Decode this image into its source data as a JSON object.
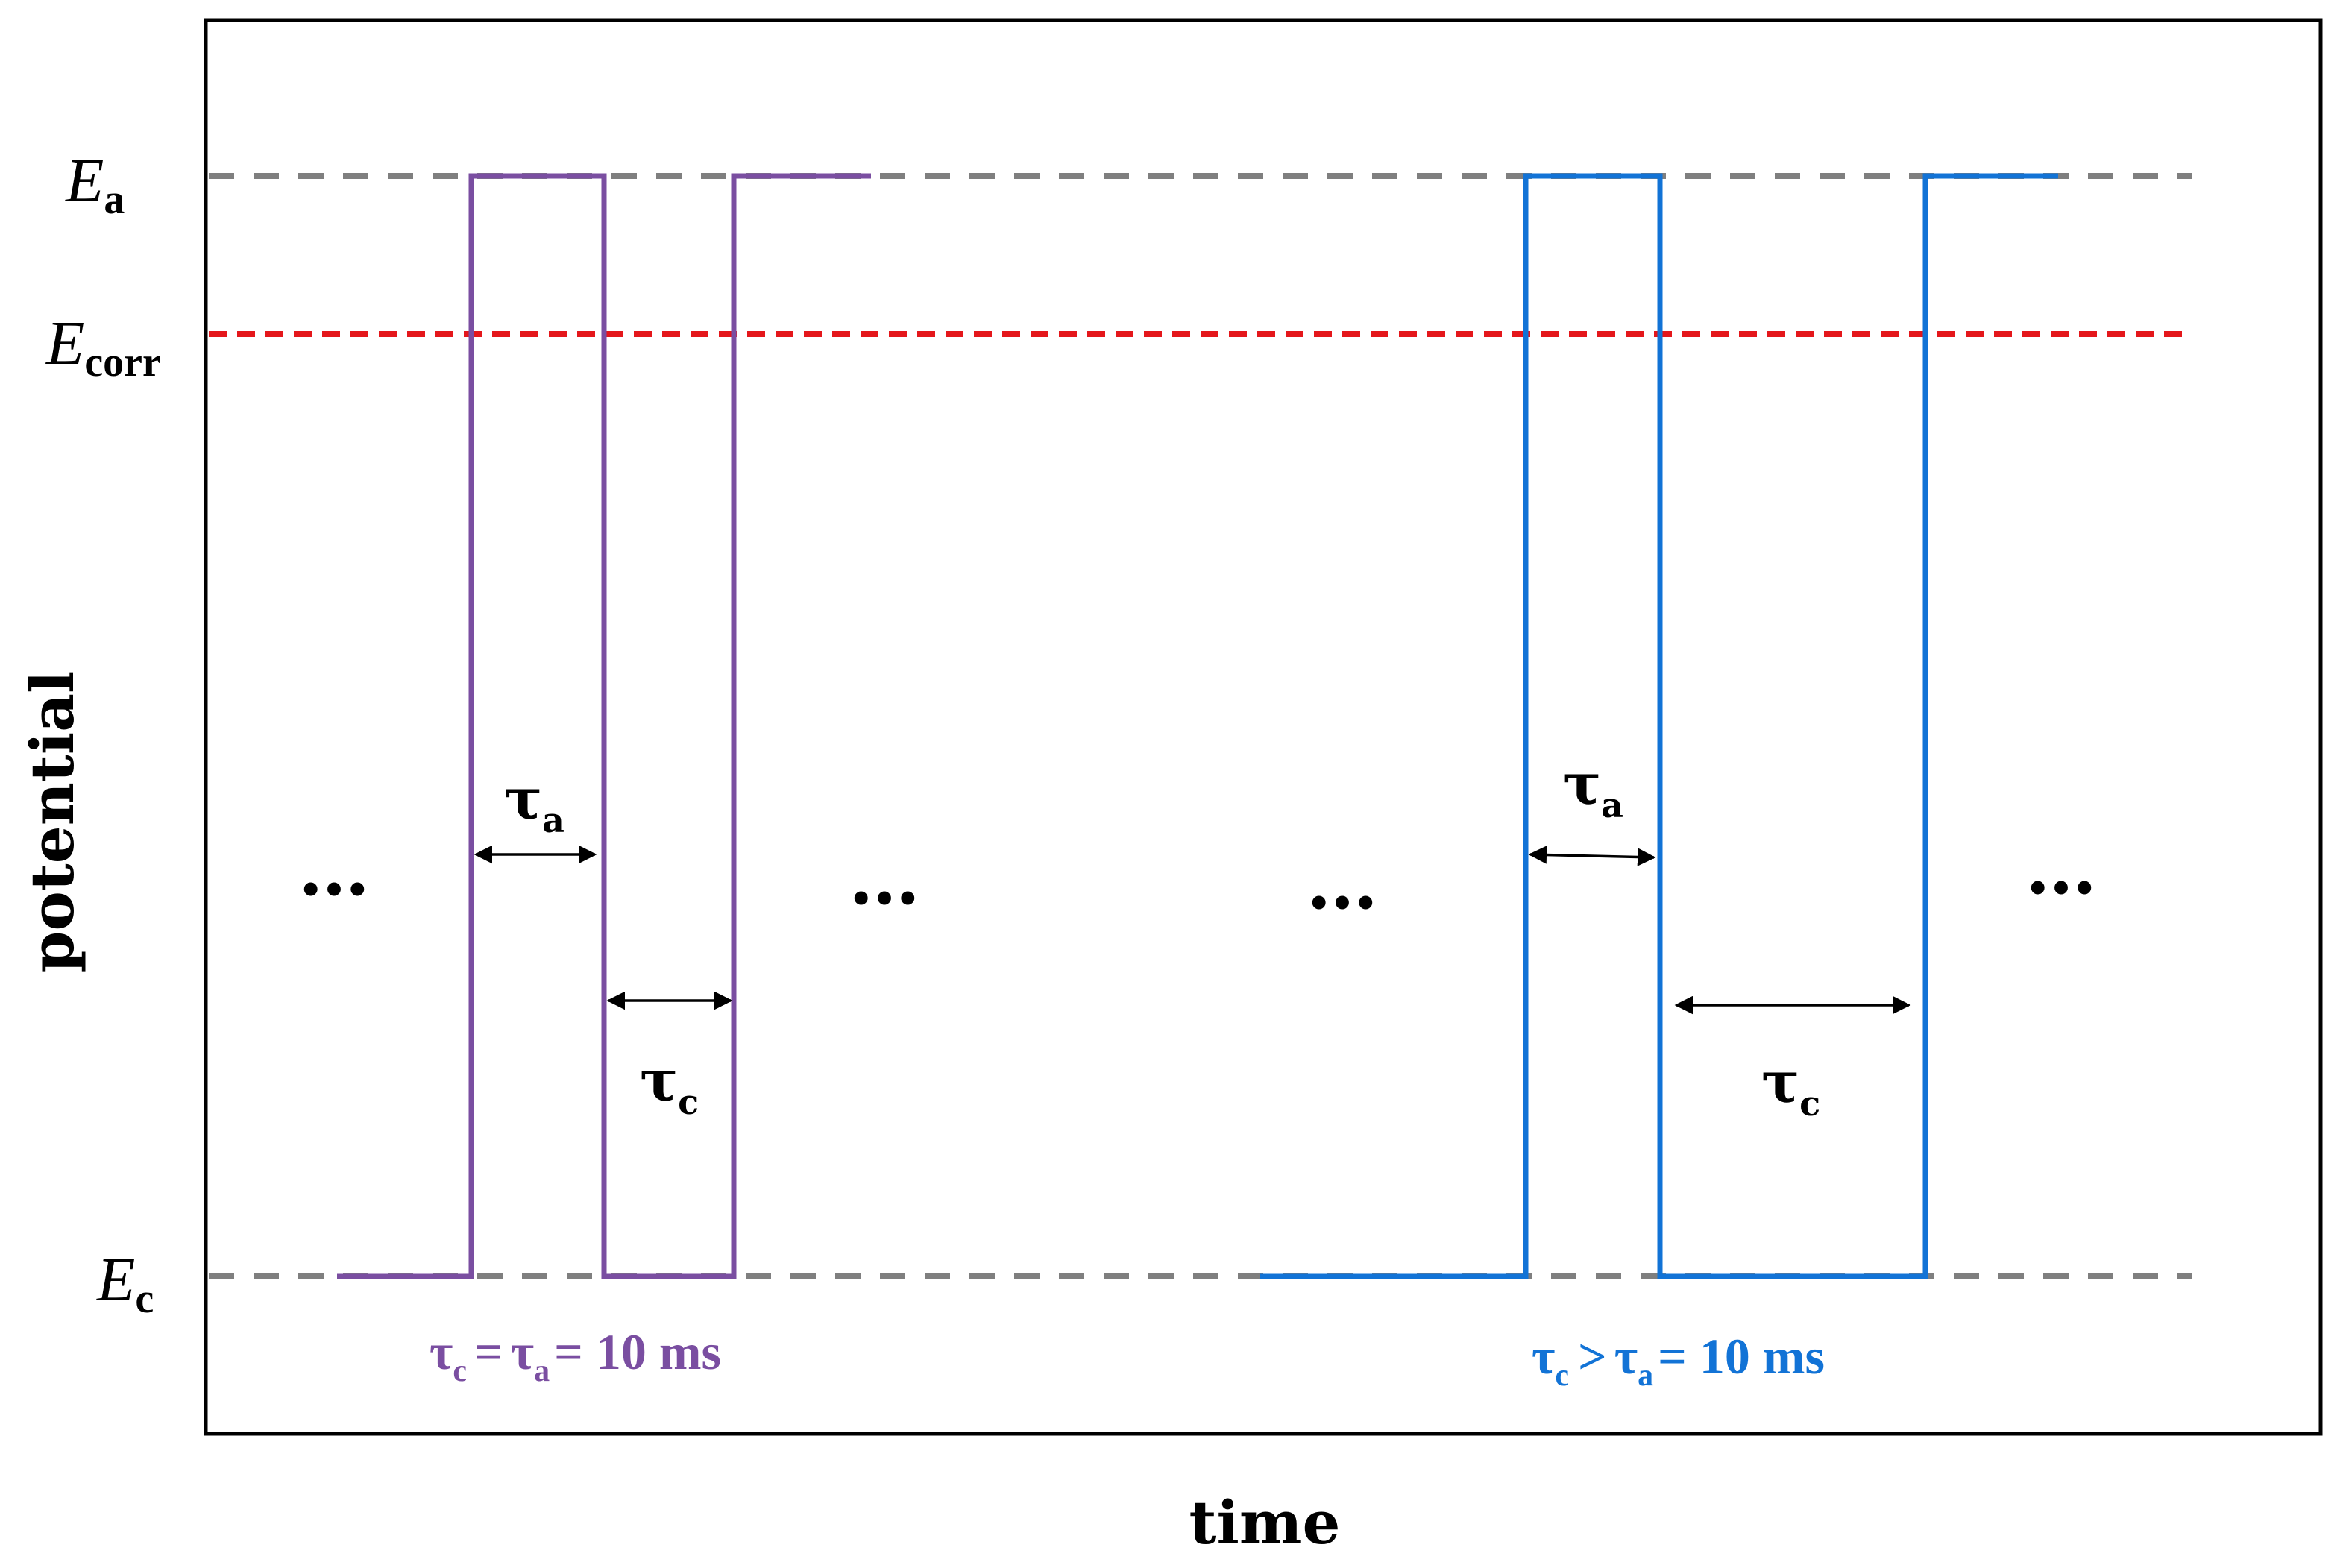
{
  "axes": {
    "y_label": "potential",
    "x_label": "time"
  },
  "levels": {
    "Ea": {
      "symbol": "E",
      "subscript": "a"
    },
    "Ecorr": {
      "symbol": "E",
      "subscript": "corr"
    },
    "Ec": {
      "symbol": "E",
      "subscript": "c"
    }
  },
  "symbols": {
    "tau": "τ",
    "sub_a": "a",
    "sub_c": "c",
    "ellipsis": "…"
  },
  "left_case": {
    "caption_eq1": "=",
    "caption_eq2": "= 10 ms",
    "color": "#7a4ea1"
  },
  "right_case": {
    "caption_op": ">",
    "caption_eq2": "= 10 ms",
    "color": "#1273d6"
  },
  "colors": {
    "reference_lines": "#7f7f7f",
    "corrosion_line": "#e4171b",
    "frame": "#000000",
    "arrows": "#000000"
  }
}
